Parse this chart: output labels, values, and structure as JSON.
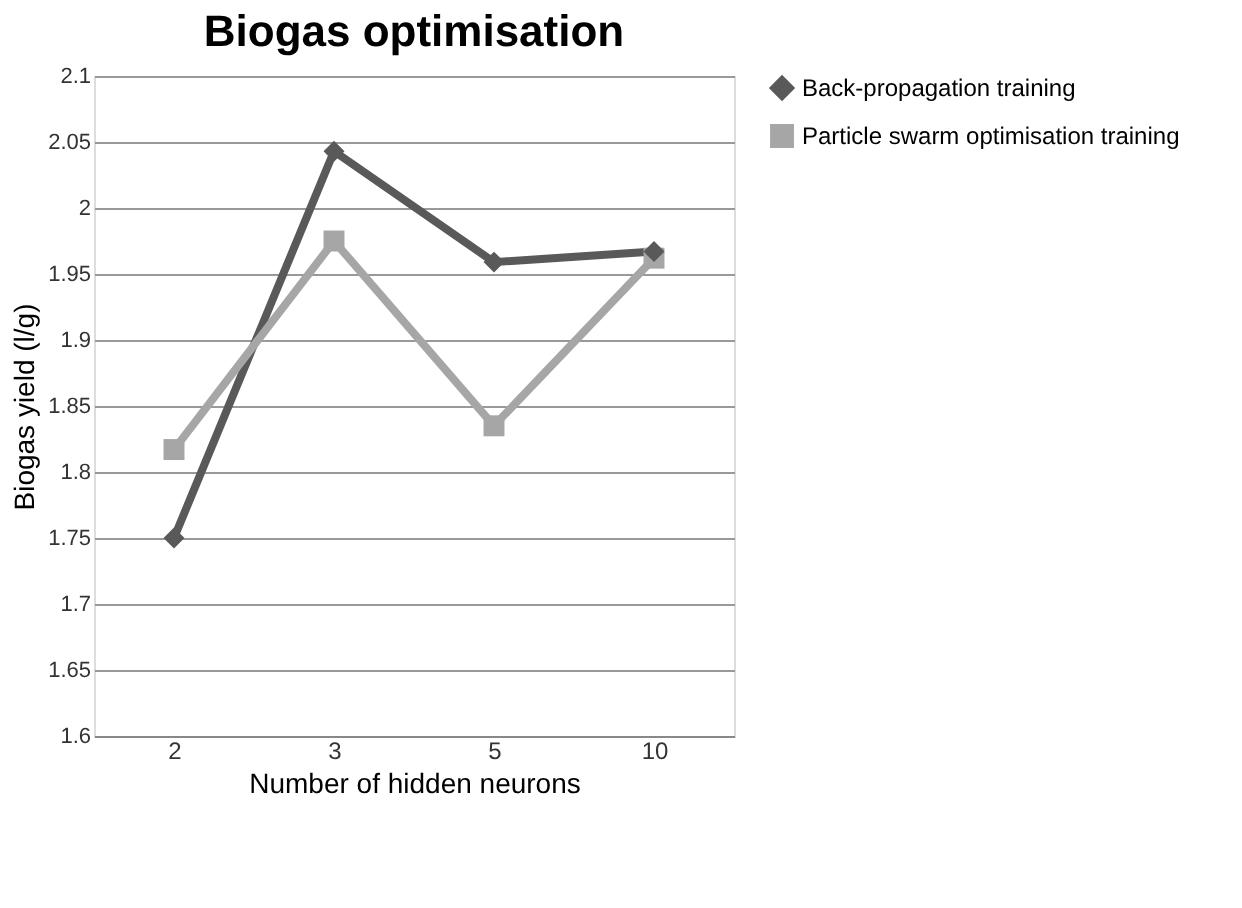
{
  "chart_data": {
    "type": "line",
    "title": "Biogas optimisation",
    "xlabel": "Number of hidden neurons",
    "ylabel": "Biogas yield (l/g)",
    "categories": [
      "2",
      "3",
      "5",
      "10"
    ],
    "series": [
      {
        "name": "Back-propagation training",
        "color": "#595959",
        "marker": "diamond",
        "values": [
          1.75,
          2.043,
          1.959,
          1.967
        ]
      },
      {
        "name": "Particle swarm optimisation training",
        "color": "#a6a6a6",
        "marker": "square",
        "values": [
          1.817,
          1.975,
          1.835,
          1.962
        ]
      }
    ],
    "ylim": [
      1.6,
      2.1
    ],
    "yticks": [
      1.6,
      1.65,
      1.7,
      1.75,
      1.8,
      1.85,
      1.9,
      1.95,
      2,
      2.05,
      2.1
    ],
    "grid": "y",
    "legend": "right",
    "line_style": "solid"
  }
}
